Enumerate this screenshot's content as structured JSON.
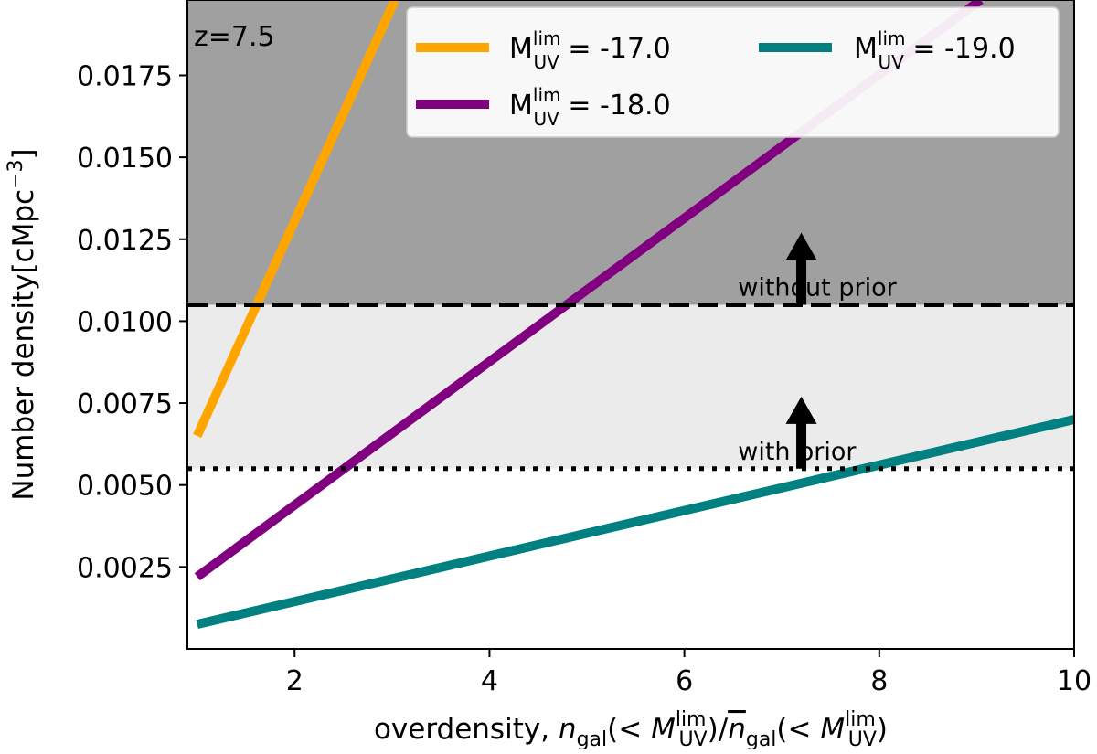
{
  "chart_data": {
    "type": "line",
    "annotation_label": "z=7.5",
    "xlabel": {
      "prefix": "overdensity, ",
      "n": "n",
      "gal": "gal",
      "lt": "(< ",
      "M": "M",
      "lim": "lim",
      "UV": "UV",
      "close": ")",
      "slash": "/"
    },
    "ylabel": {
      "main": "Number density[cMpc",
      "exp": "−3",
      "close": "]"
    },
    "xlim": [
      0.9,
      10.0
    ],
    "ylim": [
      0.0,
      0.0198
    ],
    "xticks": [
      2,
      4,
      6,
      8,
      10
    ],
    "xtick_labels": [
      "2",
      "4",
      "6",
      "8",
      "10"
    ],
    "yticks": [
      0.0025,
      0.005,
      0.0075,
      0.01,
      0.0125,
      0.015,
      0.0175
    ],
    "ytick_labels": [
      "0.0025",
      "0.0050",
      "0.0075",
      "0.0100",
      "0.0125",
      "0.0150",
      "0.0175"
    ],
    "series": [
      {
        "name": "M_UV^lim = -17.0",
        "label_prefix": "M",
        "label_sup": "lim",
        "label_sub": "UV",
        "label_value": " = -17.0",
        "color": "#ffa500",
        "x": [
          1.0,
          3.03
        ],
        "y": [
          0.0065,
          0.0198
        ]
      },
      {
        "name": "M_UV^lim = -18.0",
        "label_prefix": "M",
        "label_sup": "lim",
        "label_sub": "UV",
        "label_value": " = -18.0",
        "color": "#800080",
        "x": [
          1.0,
          9.04
        ],
        "y": [
          0.0022,
          0.0198
        ]
      },
      {
        "name": "M_UV^lim = -19.0",
        "label_prefix": "M",
        "label_sup": "lim",
        "label_sub": "UV",
        "label_value": " = -19.0",
        "color": "#008080",
        "x": [
          1.0,
          10.0
        ],
        "y": [
          0.00075,
          0.007
        ]
      }
    ],
    "bands": [
      {
        "name": "without-prior-region",
        "y0": 0.0105,
        "y1": 0.0198,
        "color": "#a0a0a0"
      },
      {
        "name": "with-prior-region",
        "y0": 0.0055,
        "y1": 0.0105,
        "color": "#ebebeb"
      }
    ],
    "hlines": [
      {
        "name": "without-prior-line",
        "y": 0.0105,
        "style": "dashed",
        "label": "without prior",
        "label_x": 6.55
      },
      {
        "name": "with-prior-line",
        "y": 0.0055,
        "style": "dotted",
        "label": "with prior",
        "label_x": 6.55
      }
    ],
    "arrows": [
      {
        "name": "arrow-without-prior",
        "x": 7.2,
        "y_from": 0.0105,
        "y_to": 0.0127
      },
      {
        "name": "arrow-with-prior",
        "x": 7.2,
        "y_from": 0.0055,
        "y_to": 0.0077
      }
    ],
    "legend_position": "top-right"
  }
}
